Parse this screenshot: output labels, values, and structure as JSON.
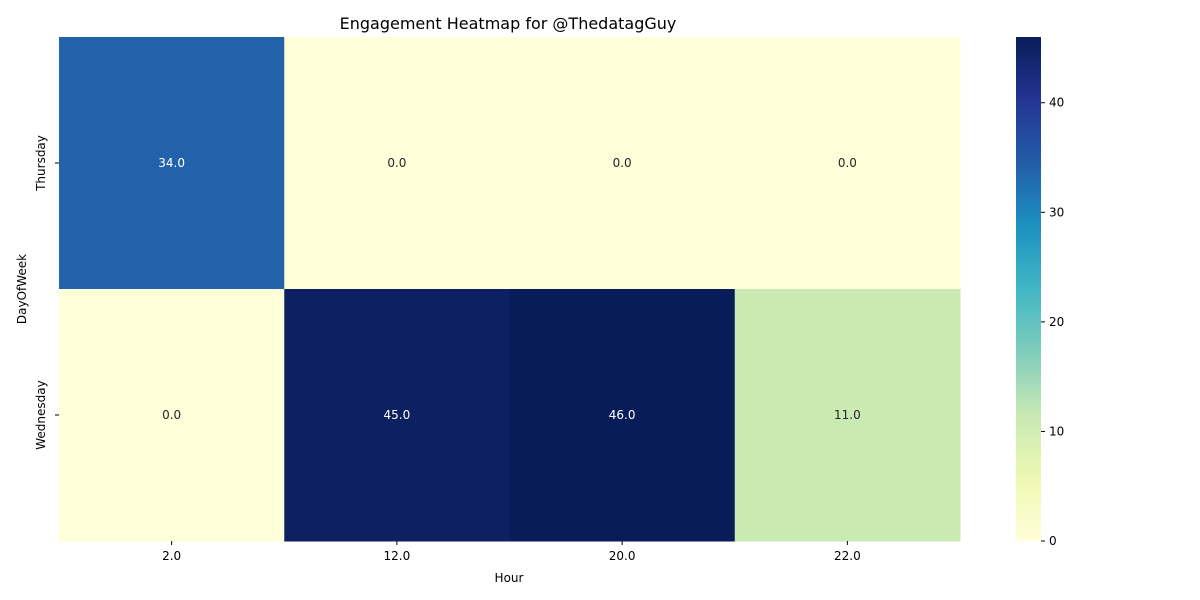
{
  "chart_data": {
    "type": "heatmap",
    "title": "Engagement Heatmap for @ThedatagGuy",
    "xlabel": "Hour",
    "ylabel": "DayOfWeek",
    "x_categories": [
      "2.0",
      "12.0",
      "20.0",
      "22.0"
    ],
    "y_categories": [
      "Thursday",
      "Wednesday"
    ],
    "values": [
      [
        34,
        0,
        0,
        0
      ],
      [
        0,
        45,
        46,
        11
      ]
    ],
    "cell_labels": [
      [
        "34.0",
        "0.0",
        "0.0",
        "0.0"
      ],
      [
        "0.0",
        "45.0",
        "46.0",
        "11.0"
      ]
    ],
    "colorscale": "YlGnBu",
    "color_range": [
      0,
      46
    ],
    "colorbar_ticks": [
      0,
      10,
      20,
      30,
      40
    ],
    "colorbar_tick_labels": [
      "0",
      "10",
      "20",
      "30",
      "40"
    ]
  }
}
